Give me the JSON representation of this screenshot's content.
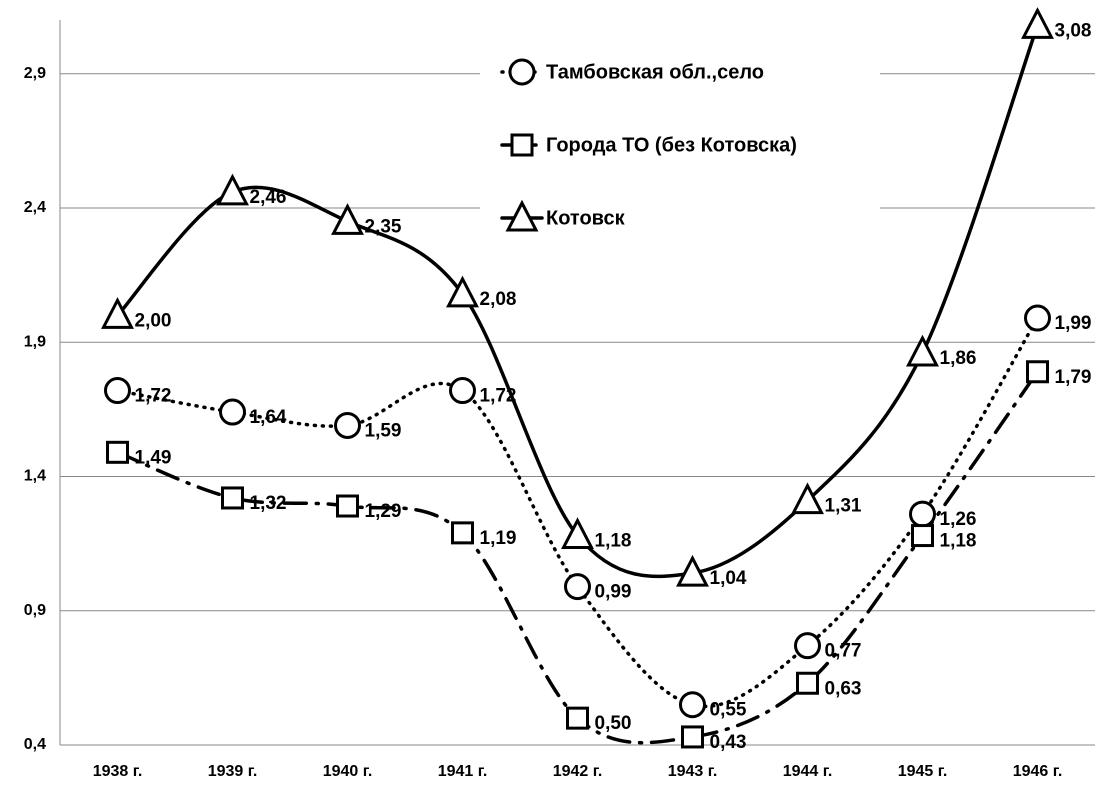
{
  "chart_data": {
    "type": "line",
    "categories": [
      "1938 г.",
      "1939 г.",
      "1940 г.",
      "1941 г.",
      "1942 г.",
      "1943 г.",
      "1944 г.",
      "1945 г.",
      "1946 г."
    ],
    "series": [
      {
        "name": "Тамбовская обл.,село",
        "color": "#000000",
        "line_style": "dotted",
        "marker": "circle",
        "values": [
          1.72,
          1.64,
          1.59,
          1.72,
          0.99,
          0.55,
          0.77,
          1.26,
          1.99
        ],
        "value_labels": [
          "1,72",
          "1,64",
          "1,59",
          "1,72",
          "0,99",
          "0,55",
          "0,77",
          "1,26",
          "1,99"
        ]
      },
      {
        "name": "Города ТО (без Котовска)",
        "color": "#000000",
        "line_style": "dash-dot",
        "marker": "square",
        "values": [
          1.49,
          1.32,
          1.29,
          1.19,
          0.5,
          0.43,
          0.63,
          1.18,
          1.79
        ],
        "value_labels": [
          "1,49",
          "1,32",
          "1,29",
          "1,19",
          "0,50",
          "0,43",
          "0,63",
          "1,18",
          "1,79"
        ]
      },
      {
        "name": "Котовск",
        "color": "#000000",
        "line_style": "solid",
        "marker": "triangle",
        "values": [
          2.0,
          2.46,
          2.35,
          2.08,
          1.18,
          1.04,
          1.31,
          1.86,
          3.08
        ],
        "value_labels": [
          "2,00",
          "2,46",
          "2,35",
          "2,08",
          "1,18",
          "1,04",
          "1,31",
          "1,86",
          "3,08"
        ]
      }
    ],
    "ylim": [
      0.4,
      3.1
    ],
    "yticks": [
      {
        "value": 0.4,
        "label": "0,4"
      },
      {
        "value": 0.9,
        "label": "0,9"
      },
      {
        "value": 1.4,
        "label": "1,4"
      },
      {
        "value": 1.9,
        "label": "1,9"
      },
      {
        "value": 2.4,
        "label": "2,4"
      },
      {
        "value": 2.9,
        "label": "2,9"
      }
    ],
    "grid": true,
    "smooth": true
  }
}
